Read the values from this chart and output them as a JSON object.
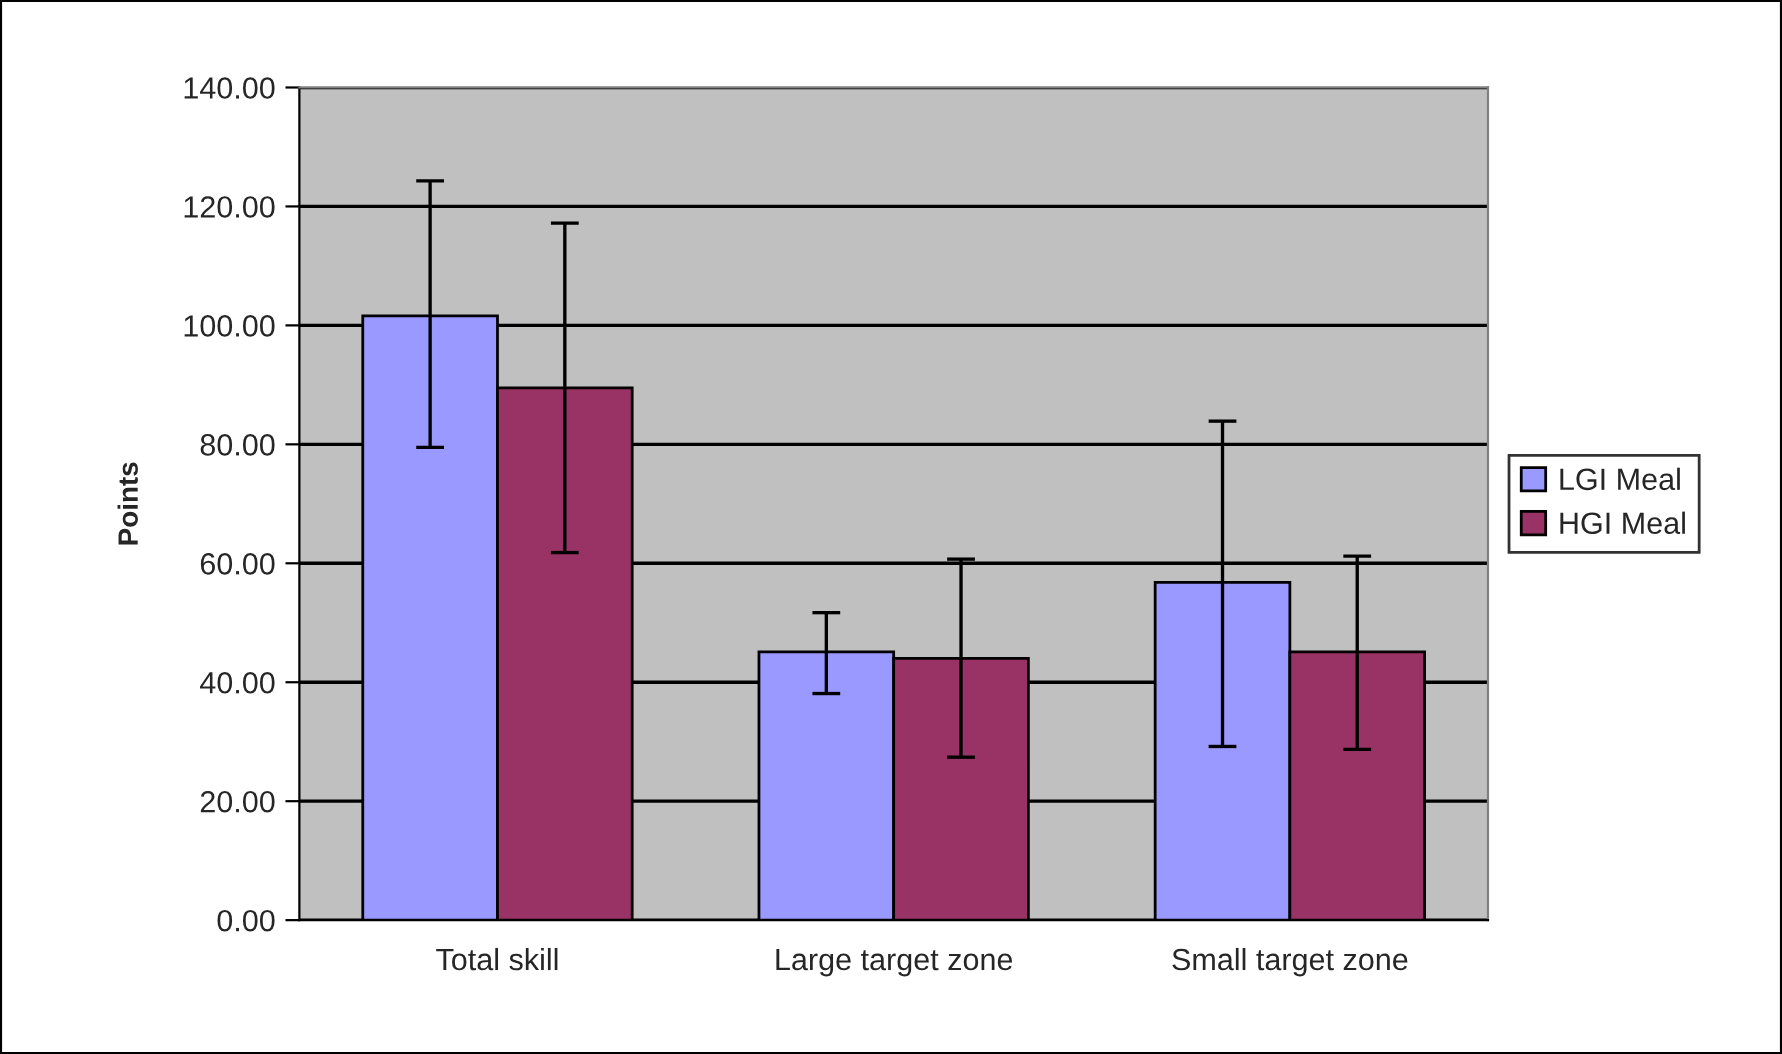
{
  "chart_data": {
    "type": "bar",
    "ylabel": "Points",
    "categories": [
      "Total skill",
      "Large target zone",
      "Small target zone"
    ],
    "series": [
      {
        "name": "LGI Meal",
        "color": "#9999ff",
        "values": [
          101.6,
          45.1,
          56.8
        ],
        "errors": [
          [
            79.5,
            124.3
          ],
          [
            38.1,
            51.7
          ],
          [
            29.2,
            83.9
          ]
        ]
      },
      {
        "name": "HGI Meal",
        "color": "#993366",
        "values": [
          89.5,
          44.0,
          45.1
        ],
        "errors": [
          [
            61.8,
            117.2
          ],
          [
            27.4,
            60.7
          ],
          [
            28.7,
            61.2
          ]
        ]
      }
    ],
    "ylim": [
      0,
      140
    ],
    "yticks": [
      {
        "value": 0,
        "label": "0.00"
      },
      {
        "value": 20,
        "label": "20.00"
      },
      {
        "value": 40,
        "label": "40.00"
      },
      {
        "value": 60,
        "label": "60.00"
      },
      {
        "value": 80,
        "label": "80.00"
      },
      {
        "value": 100,
        "label": "100.00"
      },
      {
        "value": 120,
        "label": "120.00"
      },
      {
        "value": 140,
        "label": "140.00"
      }
    ],
    "grid": "y",
    "legend": "right"
  }
}
